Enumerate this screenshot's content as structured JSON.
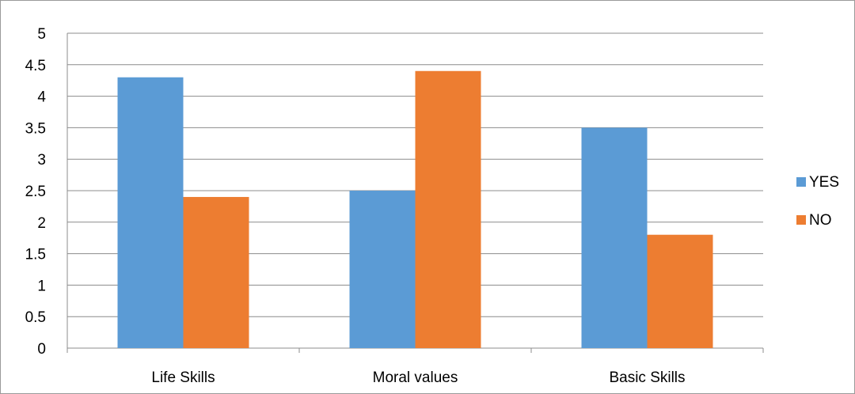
{
  "chart_data": {
    "type": "bar",
    "categories": [
      "Life Skills",
      "Moral values",
      "Basic Skills"
    ],
    "series": [
      {
        "name": "YES",
        "values": [
          4.3,
          2.5,
          3.5
        ],
        "color": "#5b9bd5"
      },
      {
        "name": "NO",
        "values": [
          2.4,
          4.4,
          1.8
        ],
        "color": "#ed7d31"
      }
    ],
    "ylim": [
      0,
      5
    ],
    "yticks": [
      "0",
      "0.5",
      "1",
      "1.5",
      "2",
      "2.5",
      "3",
      "3.5",
      "4",
      "4.5",
      "5"
    ],
    "grid": true,
    "legend_position": "right"
  }
}
